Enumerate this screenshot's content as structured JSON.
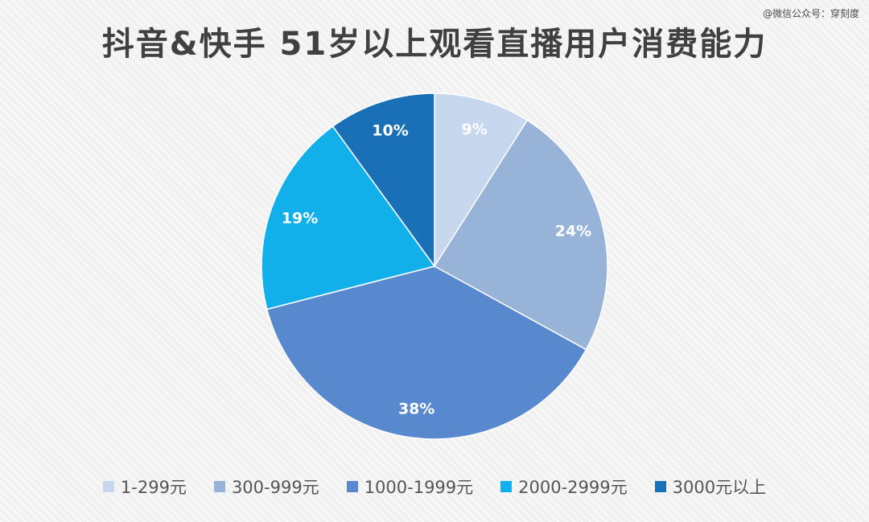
{
  "watermark": "@微信公众号：穿刻度",
  "chart_data": {
    "type": "pie",
    "title": "抖音&快手 51岁以上观看直播用户消费能力",
    "categories": [
      "1-299元",
      "300-999元",
      "1000-1999元",
      "2000-2999元",
      "3000元以上"
    ],
    "values": [
      9,
      24,
      38,
      19,
      10
    ],
    "labels": [
      "9%",
      "24%",
      "38%",
      "19%",
      "10%"
    ],
    "colors": [
      "#c6d7ee",
      "#98b3d8",
      "#5889cf",
      "#12b0eb",
      "#1a70b7"
    ],
    "legend_position": "bottom"
  }
}
